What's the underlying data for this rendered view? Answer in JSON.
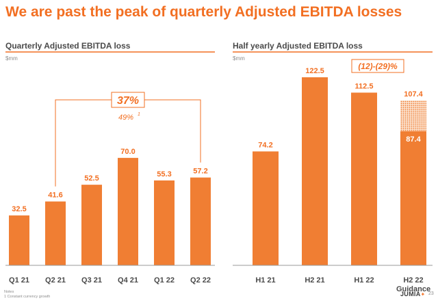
{
  "page": {
    "title": "We are past the peak of quarterly Adjusted EBITDA losses",
    "notes_label": "Notes",
    "note_1": "1  Constant currency growth",
    "logo": "JUMIA",
    "logo_icon": "star-icon",
    "page_number": "23"
  },
  "colors": {
    "accent": "#f26f22",
    "bar": "#f07e33",
    "text": "#4a4a4a"
  },
  "chart_data": [
    {
      "type": "bar",
      "title": "Quarterly Adjusted EBITDA loss",
      "unit": "$mm",
      "categories": [
        "Q1 21",
        "Q2 21",
        "Q3 21",
        "Q4 21",
        "Q1 22",
        "Q2 22"
      ],
      "values": [
        32.5,
        41.6,
        52.5,
        70.0,
        55.3,
        57.2
      ],
      "value_labels": [
        "32.5",
        "41.6",
        "52.5",
        "70.0",
        "55.3",
        "57.2"
      ],
      "ylim": [
        0,
        122.5
      ],
      "grid": false,
      "callout": {
        "from": "Q2 21",
        "to": "Q2 22",
        "label": "37%",
        "sublabel": "49%",
        "sublabel_sup": "1"
      }
    },
    {
      "type": "bar",
      "title": "Half yearly Adjusted EBITDA loss",
      "unit": "$mm",
      "categories": [
        "H1 21",
        "H2 21",
        "H1 22",
        "H2 22"
      ],
      "category_sublabels": [
        "",
        "",
        "",
        "Guidance"
      ],
      "values": [
        74.2,
        122.5,
        112.5,
        87.4
      ],
      "value_labels": [
        "74.2",
        "122.5",
        "112.5",
        "87.4"
      ],
      "range_top": [
        null,
        null,
        null,
        107.4
      ],
      "range_top_labels": [
        "",
        "",
        "",
        "107.4"
      ],
      "ylim": [
        0,
        122.5
      ],
      "grid": false,
      "callout": {
        "label": "(12)-(29)%"
      }
    }
  ]
}
